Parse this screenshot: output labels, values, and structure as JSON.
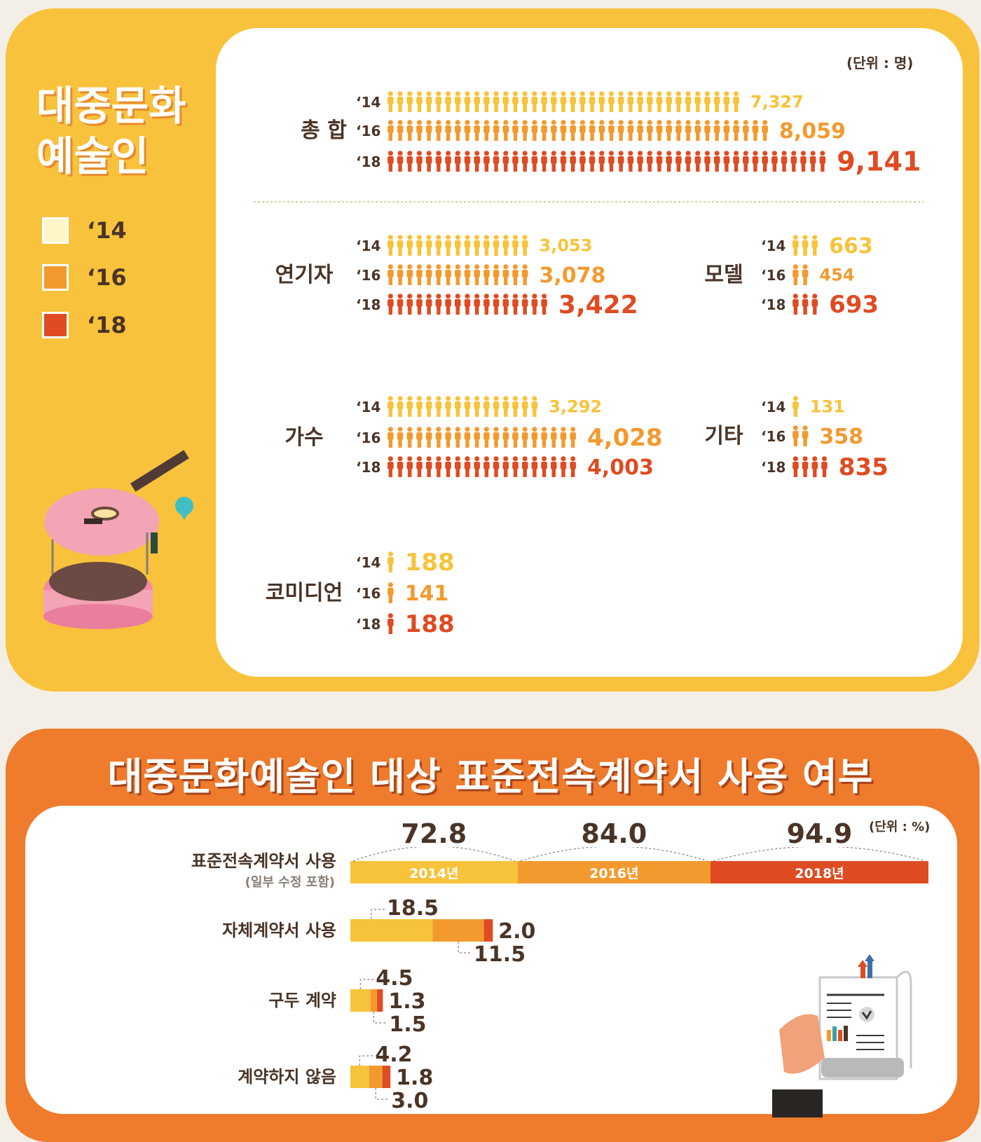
{
  "top": {
    "title_line1": "대중문화",
    "title_line2": "예술인",
    "unit": "(단위 : 명)",
    "legend": [
      {
        "label": "‘14",
        "color": "#fff6c8"
      },
      {
        "label": "‘16",
        "color": "#f39a2f"
      },
      {
        "label": "‘18",
        "color": "#df4b22"
      }
    ]
  },
  "bottom": {
    "title": "대중문화예술인 대상 표준전속계약서 사용 여부",
    "unit": "(단위 : %)"
  },
  "colors": {
    "y14": "#f7c33b",
    "y16": "#f39a2f",
    "y18": "#df4b22",
    "text": "#4a3426"
  },
  "chart_data": [
    {
      "type": "bar",
      "title": "대중문화 예술인",
      "unit": "(단위 : 명)",
      "groups": [
        {
          "name": "총 합",
          "years": [
            "‘14",
            "‘16",
            "‘18"
          ],
          "values": [
            7327,
            8059,
            9141
          ],
          "labels": [
            "7,327",
            "8,059",
            "9,141"
          ]
        },
        {
          "name": "연기자",
          "years": [
            "‘14",
            "‘16",
            "‘18"
          ],
          "values": [
            3053,
            3078,
            3422
          ],
          "labels": [
            "3,053",
            "3,078",
            "3,422"
          ]
        },
        {
          "name": "모델",
          "years": [
            "‘14",
            "‘16",
            "‘18"
          ],
          "values": [
            663,
            454,
            693
          ],
          "labels": [
            "663",
            "454",
            "693"
          ]
        },
        {
          "name": "가수",
          "years": [
            "‘14",
            "‘16",
            "‘18"
          ],
          "values": [
            3292,
            4028,
            4003
          ],
          "labels": [
            "3,292",
            "4,028",
            "4,003"
          ]
        },
        {
          "name": "기타",
          "years": [
            "‘14",
            "‘16",
            "‘18"
          ],
          "values": [
            131,
            358,
            835
          ],
          "labels": [
            "131",
            "358",
            "835"
          ]
        },
        {
          "name": "코미디언",
          "years": [
            "‘14",
            "‘16",
            "‘18"
          ],
          "values": [
            188,
            141,
            188
          ],
          "labels": [
            "188",
            "141",
            "188"
          ]
        }
      ]
    },
    {
      "type": "bar",
      "title": "대중문화예술인 대상 표준전속계약서 사용 여부",
      "unit": "(단위 : %)",
      "series_names": [
        "2014년",
        "2016년",
        "2018년"
      ],
      "categories": [
        {
          "label": "표준전속계약서 사용",
          "sublabel": "(일부 수정 포함)",
          "values": [
            72.8,
            84.0,
            94.9
          ],
          "labels": [
            "72.8",
            "84.0",
            "94.9"
          ]
        },
        {
          "label": "자체계약서 사용",
          "values": [
            18.5,
            11.5,
            2.0
          ],
          "labels": [
            "18.5",
            "11.5",
            "2.0"
          ]
        },
        {
          "label": "구두 계약",
          "values": [
            4.5,
            1.5,
            1.3
          ],
          "labels": [
            "4.5",
            "1.5",
            "1.3"
          ]
        },
        {
          "label": "계약하지 않음",
          "values": [
            4.2,
            3.0,
            1.8
          ],
          "labels": [
            "4.2",
            "3.0",
            "1.8"
          ]
        }
      ]
    }
  ]
}
